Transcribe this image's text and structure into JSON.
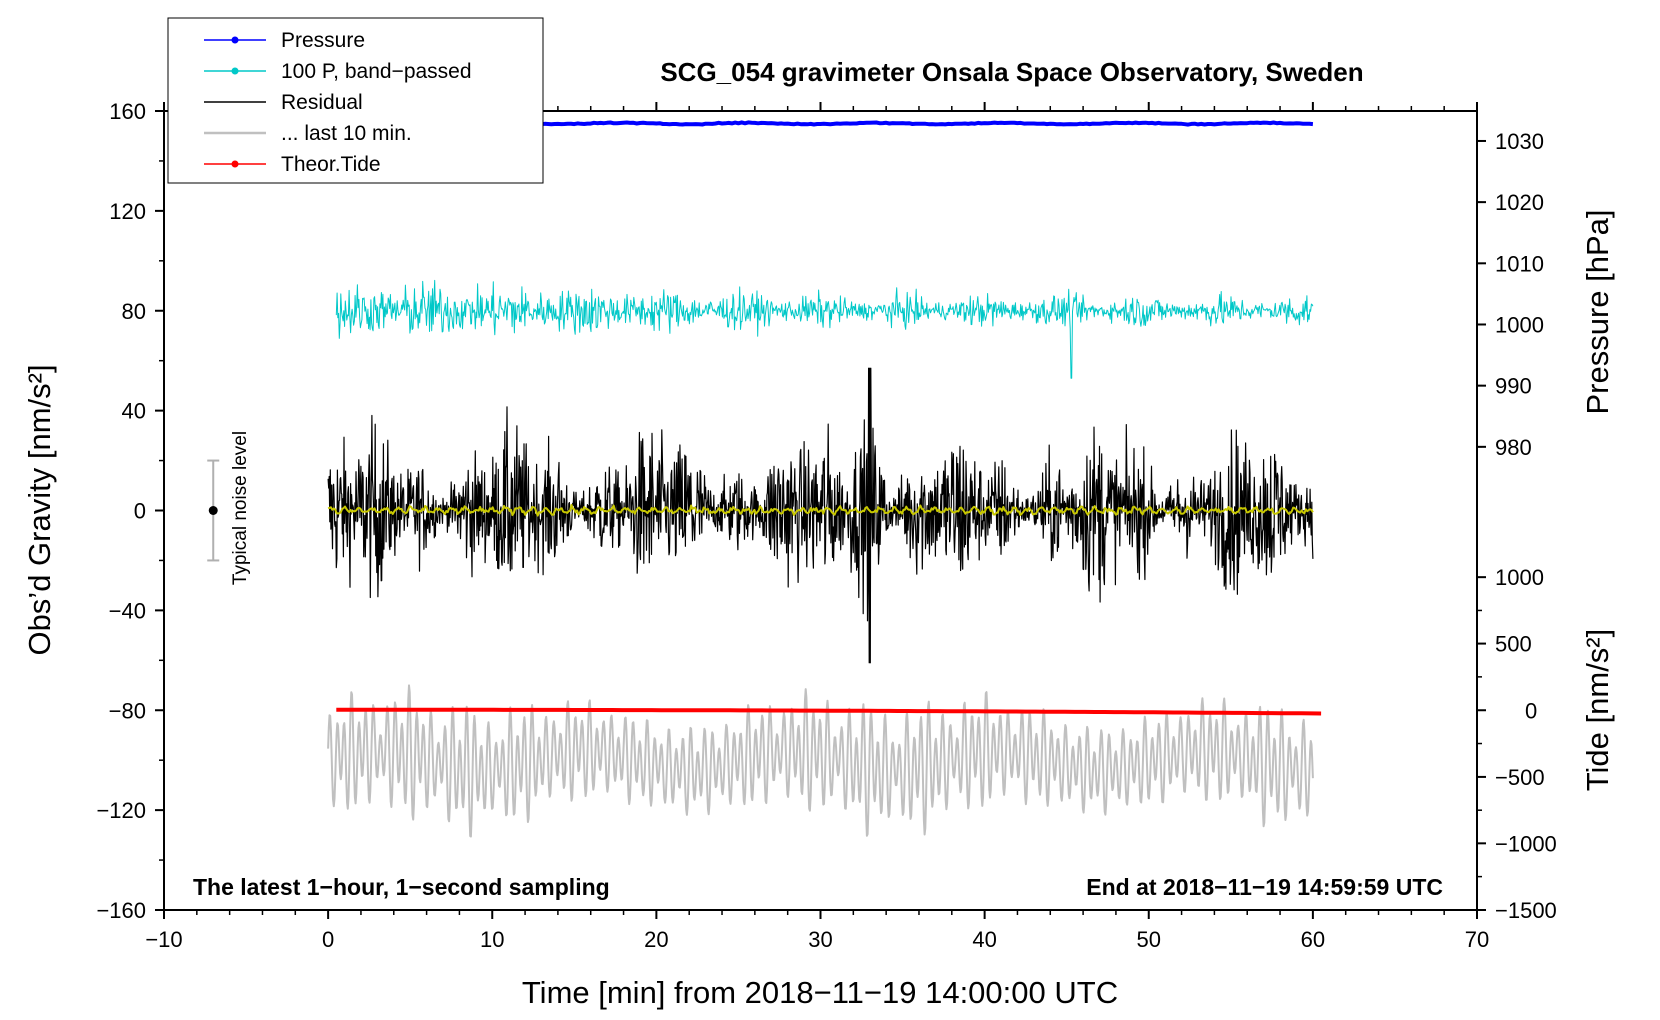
{
  "chart_data": {
    "type": "line",
    "title": "SCG_054 gravimeter Onsala Space Observatory, Sweden",
    "xlabel": "Time [min] from 2018−11−19 14:00:00 UTC",
    "ylabel_left": "Obs’d Gravity [nm/s²]",
    "ylabel_right_pressure": "Pressure [hPa]",
    "ylabel_right_tide": "Tide [nm/s²]",
    "xlim": [
      -10,
      70
    ],
    "ylim": [
      -160,
      160
    ],
    "x_ticks": [
      "−10",
      "0",
      "10",
      "20",
      "30",
      "40",
      "50",
      "60",
      "70"
    ],
    "x_tick_values": [
      -10,
      0,
      10,
      20,
      30,
      40,
      50,
      60,
      70
    ],
    "y_ticks": [
      "160",
      "120",
      "80",
      "40",
      "0",
      "−40",
      "−80",
      "−120",
      "−160"
    ],
    "y_tick_values": [
      160,
      120,
      80,
      40,
      0,
      -40,
      -80,
      -120,
      -160
    ],
    "pressure_axis": {
      "ticks": [
        "1030",
        "1020",
        "1010",
        "1000",
        "990",
        "980"
      ],
      "tick_values": [
        1030,
        1020,
        1010,
        1000,
        990,
        980
      ],
      "left_equivalent": [
        148,
        123.5,
        99,
        74.5,
        50,
        25.5
      ]
    },
    "tide_axis": {
      "ticks": [
        "1000",
        "500",
        "0",
        "−500",
        "−1000",
        "−1500"
      ],
      "tick_values": [
        1000,
        500,
        0,
        -500,
        -1000,
        -1500
      ],
      "left_equivalent": [
        -26.7,
        -53.3,
        -80,
        -106.7,
        -133.3,
        -160
      ]
    },
    "legend": [
      {
        "label": "Pressure",
        "color": "#0000ff",
        "marker": true
      },
      {
        "label": "100 P, band−passed",
        "color": "#00c8c8",
        "marker": true
      },
      {
        "label": "Residual",
        "color": "#000000",
        "marker": false
      },
      {
        "label": "... last 10 min.",
        "color": "#c0c0c0",
        "marker": false
      },
      {
        "label": "Theor.Tide",
        "color": "#ff0000",
        "marker": true
      }
    ],
    "annotations": {
      "bottom_left": "The latest 1−hour, 1−second sampling",
      "bottom_right": "End at 2018−11−19 14:59:59 UTC",
      "noise_label": "Typical noise level"
    },
    "noise_bar": {
      "x": -7,
      "center": 0,
      "low": -20,
      "high": 20
    },
    "series": [
      {
        "name": "Pressure",
        "color": "#0000ff",
        "x_range": [
          0,
          60
        ],
        "left_axis_level": 155,
        "pressure_hPa": 1033
      },
      {
        "name": "100 P, band−passed",
        "color": "#00c8c8",
        "x_range": [
          0.5,
          60
        ],
        "center": 80,
        "amplitude": 8
      },
      {
        "name": "Residual",
        "color": "#000000",
        "x_range": [
          0,
          60
        ],
        "center": 0,
        "amplitude": 25,
        "min": -61,
        "max": 57,
        "max_at_min": 33
      },
      {
        "name": "Residual smoothed",
        "color": "#c8c800",
        "x_range": [
          0,
          60
        ],
        "center": 0,
        "amplitude": 1.5
      },
      {
        "name": "... last 10 min.",
        "color": "#c0c0c0",
        "x_range": [
          0,
          60
        ],
        "center": -100,
        "amplitude": 25
      },
      {
        "name": "Theor.Tide",
        "color": "#ff0000",
        "x_range": [
          0.5,
          60.5
        ],
        "start": -79.8,
        "end": -81.3
      }
    ],
    "colors": {
      "pressure": "#0000ff",
      "bandpass": "#00c8c8",
      "residual": "#000000",
      "smooth": "#c8c800",
      "last10": "#c0c0c0",
      "tide": "#ff0000",
      "noise": "#b0b0b0"
    }
  }
}
